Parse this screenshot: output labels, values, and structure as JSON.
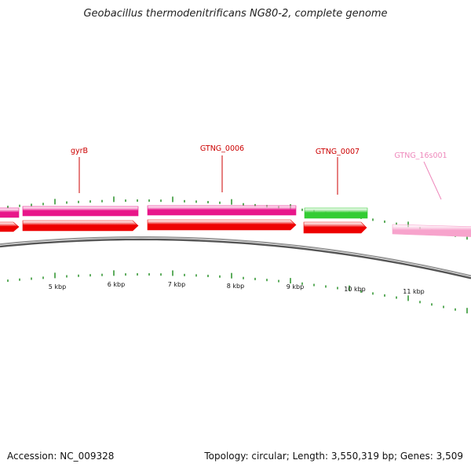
{
  "title": "Geobacillus thermodenitrificans NG80-2, complete genome",
  "footer": {
    "accession_text": "Accession: NC_009328",
    "summary_text": "Topology: circular; Length: 3,550,319 bp; Genes: 3,509"
  },
  "colors": {
    "cds_forward_magenta": "#e8168a",
    "cds_forward_green": "#33cc33",
    "cds_reverse_red": "#ee0000",
    "rrna_pink": "#f7a3cc",
    "label_red": "#cc0000",
    "label_pink": "#ee88bb",
    "tick_green": "#1a8a1a",
    "backbone_gray": "#777777"
  },
  "genome_map": {
    "scale_labels": [
      "5 kbp",
      "6 kbp",
      "7 kbp",
      "8 kbp",
      "9 kbp",
      "10 kbp",
      "11 kbp"
    ],
    "gene_labels": [
      {
        "text": "gyrB",
        "color": "label_red"
      },
      {
        "text": "GTNG_0006",
        "color": "label_red"
      },
      {
        "text": "GTNG_0007",
        "color": "label_red"
      },
      {
        "text": "GTNG_16s001",
        "color": "label_pink"
      }
    ],
    "features": [
      {
        "strand": "forward",
        "color": "cds_forward_magenta"
      },
      {
        "strand": "forward",
        "color": "cds_forward_magenta"
      },
      {
        "strand": "forward",
        "color": "cds_forward_magenta"
      },
      {
        "strand": "forward",
        "color": "cds_forward_green"
      },
      {
        "strand": "reverse",
        "color": "cds_reverse_red"
      },
      {
        "strand": "reverse",
        "color": "cds_reverse_red"
      },
      {
        "strand": "reverse",
        "color": "cds_reverse_red"
      },
      {
        "strand": "reverse",
        "color": "cds_reverse_red"
      },
      {
        "strand": "reverse",
        "color": "rrna_pink"
      }
    ]
  }
}
